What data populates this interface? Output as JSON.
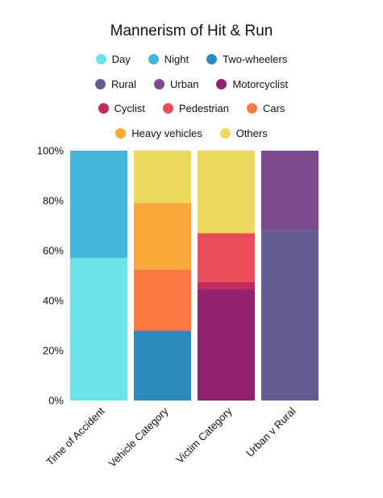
{
  "chart_data": {
    "type": "bar",
    "stacked": true,
    "percent": true,
    "title": "Mannerism of Hit & Run",
    "categories": [
      "Time of Accident",
      "Vehicle Category",
      "Victim Category",
      "Urban v Rural"
    ],
    "ylim": [
      0,
      100
    ],
    "yticks": [
      "0%",
      "20%",
      "40%",
      "60%",
      "80%",
      "100%"
    ],
    "ytick_values": [
      0,
      20,
      40,
      60,
      80,
      100
    ],
    "grid": false,
    "legend_position": "top",
    "series": [
      {
        "name": "Day",
        "color": "#6de3e8",
        "values": [
          57,
          0,
          0,
          0
        ]
      },
      {
        "name": "Night",
        "color": "#45b6d9",
        "values": [
          43,
          0,
          0,
          0
        ]
      },
      {
        "name": "Two-wheelers",
        "color": "#2b8cbb",
        "values": [
          0,
          28,
          0,
          0
        ]
      },
      {
        "name": "Rural",
        "color": "#625b91",
        "values": [
          0,
          0,
          0,
          68
        ]
      },
      {
        "name": "Urban",
        "color": "#7d4a8f",
        "values": [
          0,
          0,
          0,
          32
        ]
      },
      {
        "name": "Motorcyclist",
        "color": "#942070",
        "values": [
          0,
          0,
          44.5,
          0
        ]
      },
      {
        "name": "Cyclist",
        "color": "#c52a5a",
        "values": [
          0,
          0,
          3,
          0
        ]
      },
      {
        "name": "Pedestrian",
        "color": "#ea4c5c",
        "values": [
          0,
          0,
          19.5,
          0
        ]
      },
      {
        "name": "Cars",
        "color": "#fb7a43",
        "values": [
          0,
          24.5,
          0,
          0
        ]
      },
      {
        "name": "Heavy vehicles",
        "color": "#fba93a",
        "values": [
          0,
          26.5,
          0,
          0
        ]
      },
      {
        "name": "Others",
        "color": "#eed85c",
        "values": [
          0,
          21,
          33,
          0
        ]
      }
    ],
    "legend_rows": [
      [
        "Day",
        "Night",
        "Two-wheelers"
      ],
      [
        "Rural",
        "Urban",
        "Motorcyclist"
      ],
      [
        "Cyclist",
        "Pedestrian",
        "Cars"
      ],
      [
        "Heavy vehicles",
        "Others"
      ]
    ]
  }
}
